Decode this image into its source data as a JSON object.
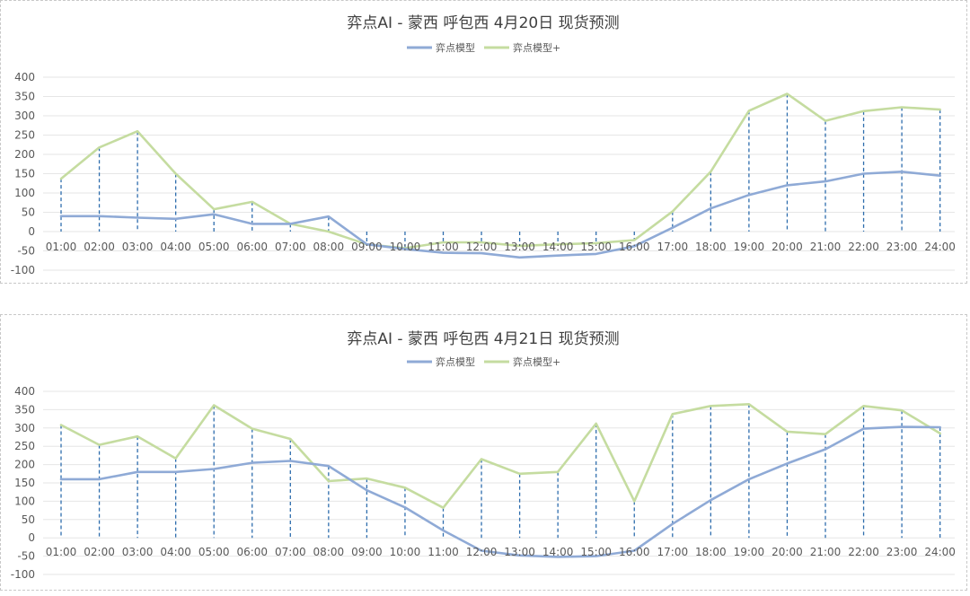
{
  "chart_data": [
    {
      "type": "line",
      "title": "弈点AI - 蒙西 呼包西 4月20日 现货预测",
      "xlabel": "",
      "ylabel": "",
      "categories": [
        "01:00",
        "02:00",
        "03:00",
        "04:00",
        "05:00",
        "06:00",
        "07:00",
        "08:00",
        "09:00",
        "10:00",
        "11:00",
        "12:00",
        "13:00",
        "14:00",
        "15:00",
        "16:00",
        "17:00",
        "18:00",
        "19:00",
        "20:00",
        "21:00",
        "22:00",
        "23:00",
        "24:00"
      ],
      "y_ticks": [
        "400",
        "350",
        "300",
        "250",
        "200",
        "150",
        "100",
        "50",
        "0",
        "-50",
        "-100"
      ],
      "ylim": [
        -100,
        400
      ],
      "grid": true,
      "legend_position": "top-center",
      "drop_lines": true,
      "series": [
        {
          "name": "弈点模型",
          "color": "#8faad6",
          "values": [
            40,
            40,
            36,
            33,
            45,
            20,
            20,
            39,
            -33,
            -45,
            -55,
            -56,
            -67,
            -62,
            -58,
            -38,
            10,
            60,
            95,
            120,
            130,
            150,
            155,
            145
          ]
        },
        {
          "name": "弈点模型+",
          "color": "#c5dca0",
          "values": [
            137,
            218,
            260,
            150,
            58,
            77,
            20,
            0,
            -33,
            -43,
            -28,
            -28,
            -37,
            -33,
            -30,
            -22,
            52,
            155,
            313,
            357,
            287,
            312,
            322,
            316
          ]
        }
      ]
    },
    {
      "type": "line",
      "title": "弈点AI - 蒙西 呼包西 4月21日 现货预测",
      "xlabel": "",
      "ylabel": "",
      "categories": [
        "01:00",
        "02:00",
        "03:00",
        "04:00",
        "05:00",
        "06:00",
        "07:00",
        "08:00",
        "09:00",
        "10:00",
        "11:00",
        "12:00",
        "13:00",
        "14:00",
        "15:00",
        "16:00",
        "17:00",
        "18:00",
        "19:00",
        "20:00",
        "21:00",
        "22:00",
        "23:00",
        "24:00"
      ],
      "y_ticks": [
        "400",
        "350",
        "300",
        "250",
        "200",
        "150",
        "100",
        "50",
        "0",
        "-50",
        "-100"
      ],
      "ylim": [
        -100,
        400
      ],
      "grid": true,
      "legend_position": "top-center",
      "drop_lines": true,
      "series": [
        {
          "name": "弈点模型",
          "color": "#8faad6",
          "values": [
            160,
            160,
            180,
            180,
            188,
            205,
            210,
            196,
            130,
            83,
            20,
            -35,
            -48,
            -52,
            -50,
            -35,
            38,
            103,
            160,
            203,
            242,
            298,
            303,
            302
          ]
        },
        {
          "name": "弈点模型+",
          "color": "#c5dca0",
          "values": [
            308,
            254,
            277,
            217,
            362,
            298,
            270,
            155,
            162,
            137,
            82,
            215,
            175,
            180,
            312,
            100,
            338,
            360,
            365,
            290,
            283,
            360,
            348,
            285
          ]
        }
      ]
    }
  ]
}
